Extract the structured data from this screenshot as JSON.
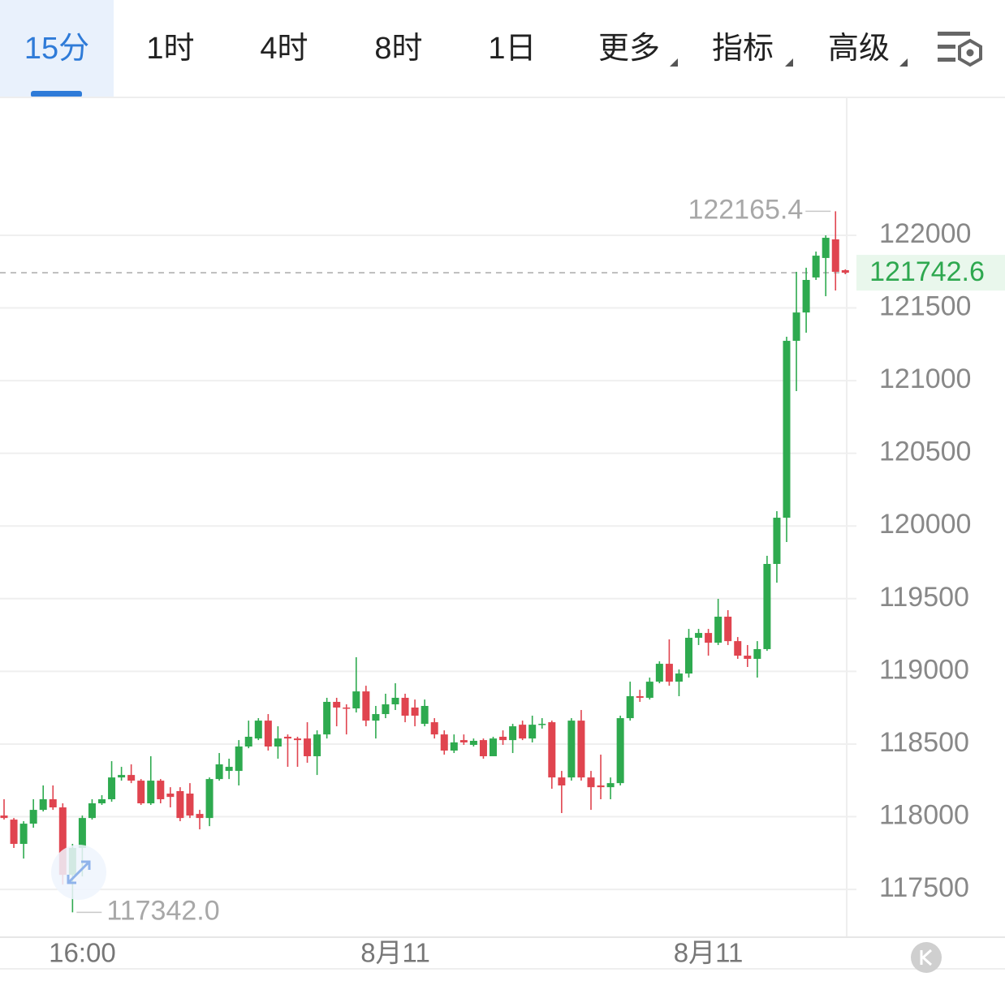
{
  "tabs": [
    "15分",
    "1时",
    "4时",
    "8时",
    "1日",
    "更多",
    "指标",
    "高级"
  ],
  "active_tab": 0,
  "chart_data": {
    "type": "candlestick",
    "up_color": "#2eaa4f",
    "down_color": "#e0444f",
    "ylim": [
      117171,
      122949
    ],
    "yticks": [
      117500,
      118000,
      118500,
      119000,
      119500,
      120000,
      120500,
      121000,
      121500,
      122000
    ],
    "grid": true,
    "categories": [
      null,
      null,
      null,
      null,
      null,
      null,
      null,
      null,
      "16:00",
      null,
      null,
      null,
      null,
      null,
      null,
      null,
      null,
      null,
      null,
      null,
      null,
      null,
      null,
      null,
      null,
      null,
      null,
      null,
      null,
      null,
      null,
      null,
      null,
      null,
      null,
      null,
      null,
      null,
      null,
      null,
      "8月11",
      null,
      null,
      null,
      null,
      null,
      null,
      null,
      null,
      null,
      null,
      null,
      null,
      null,
      null,
      null,
      null,
      null,
      null,
      null,
      null,
      null,
      null,
      null,
      null,
      null,
      null,
      null,
      null,
      null,
      null,
      null,
      "8月11",
      null,
      null,
      null,
      null,
      null,
      null,
      null,
      null,
      null,
      null,
      null,
      null,
      null,
      null
    ],
    "open": [
      118008,
      117980,
      117813,
      117952,
      118047,
      118120,
      118064,
      117600,
      117785,
      117991,
      118092,
      118120,
      118270,
      118287,
      118248,
      118092,
      118248,
      118159,
      118176,
      118159,
      118019,
      117991,
      118259,
      118315,
      118315,
      118483,
      118538,
      118661,
      118483,
      118550,
      118538,
      118538,
      118416,
      118566,
      118790,
      118751,
      118745,
      118862,
      118661,
      118706,
      118773,
      118818,
      118751,
      118639,
      118650,
      118566,
      118455,
      118527,
      118494,
      118527,
      118416,
      118550,
      118527,
      118633,
      118538,
      118633,
      118650,
      118270,
      118270,
      118661,
      118270,
      118215,
      118203,
      118231,
      118678,
      118829,
      118818,
      118929,
      119052,
      118929,
      118985,
      119231,
      119264,
      119197,
      119376,
      119208,
      119108,
      119086,
      119153,
      119739,
      120057,
      121274,
      121469,
      121710,
      121844,
      121972,
      121760
    ],
    "high": [
      118120,
      117991,
      117969,
      118120,
      118215,
      118215,
      118092,
      117813,
      118008,
      118120,
      118148,
      118382,
      118343,
      118360,
      118259,
      118416,
      118259,
      118203,
      118203,
      118231,
      118047,
      118270,
      118438,
      118399,
      118527,
      118661,
      118678,
      118706,
      118622,
      118566,
      118550,
      118650,
      118594,
      118818,
      118818,
      118773,
      119097,
      118901,
      118762,
      118846,
      118918,
      118846,
      118806,
      118806,
      118678,
      118594,
      118566,
      118566,
      118538,
      118538,
      118550,
      118594,
      118639,
      118661,
      118695,
      118678,
      118661,
      118315,
      118678,
      118734,
      118315,
      118427,
      118270,
      118695,
      118929,
      118873,
      118957,
      119069,
      119220,
      119013,
      119292,
      119292,
      119292,
      119499,
      119421,
      119236,
      119181,
      119208,
      119795,
      120102,
      121302,
      121749,
      121777,
      121888,
      122000,
      122165.4,
      121766
    ],
    "low": [
      117980,
      117785,
      117712,
      117924,
      118036,
      118047,
      117533,
      117342,
      117589,
      117980,
      118081,
      118103,
      118248,
      118231,
      118081,
      118081,
      118092,
      118064,
      117969,
      117991,
      117913,
      117935,
      118248,
      118259,
      118215,
      118471,
      118527,
      118455,
      118399,
      118343,
      118343,
      118371,
      118287,
      118538,
      118622,
      118566,
      118717,
      118622,
      118538,
      118678,
      118734,
      118650,
      118622,
      118622,
      118538,
      118427,
      118438,
      118494,
      118483,
      118399,
      118416,
      118494,
      118438,
      118527,
      118511,
      118606,
      118192,
      118025,
      118248,
      118248,
      118047,
      118120,
      118120,
      118215,
      118661,
      118790,
      118806,
      118918,
      118901,
      118829,
      118957,
      119181,
      119108,
      119181,
      119181,
      119086,
      119030,
      118957,
      119141,
      119610,
      119890,
      120928,
      121330,
      121693,
      121581,
      121620,
      121732
    ],
    "close": [
      117991,
      117813,
      117952,
      118047,
      118120,
      118064,
      117600,
      117785,
      117991,
      118092,
      118120,
      118270,
      118287,
      118248,
      118092,
      118248,
      118120,
      118136,
      117991,
      118008,
      117991,
      118259,
      118360,
      118343,
      118483,
      118550,
      118661,
      118483,
      118538,
      118538,
      118527,
      118416,
      118566,
      118790,
      118751,
      118745,
      118862,
      118661,
      118706,
      118773,
      118818,
      118695,
      118695,
      118762,
      118566,
      118455,
      118511,
      118511,
      118522,
      118416,
      118538,
      118527,
      118622,
      118538,
      118633,
      118639,
      118270,
      118215,
      118661,
      118270,
      118203,
      118203,
      118231,
      118678,
      118829,
      118818,
      118929,
      119052,
      118929,
      118985,
      119231,
      119264,
      119197,
      119376,
      119208,
      119108,
      119086,
      119153,
      119739,
      120057,
      121274,
      121469,
      121693,
      121860,
      121983,
      121749,
      121742.6
    ],
    "low_label": "117342.0"
  }
}
